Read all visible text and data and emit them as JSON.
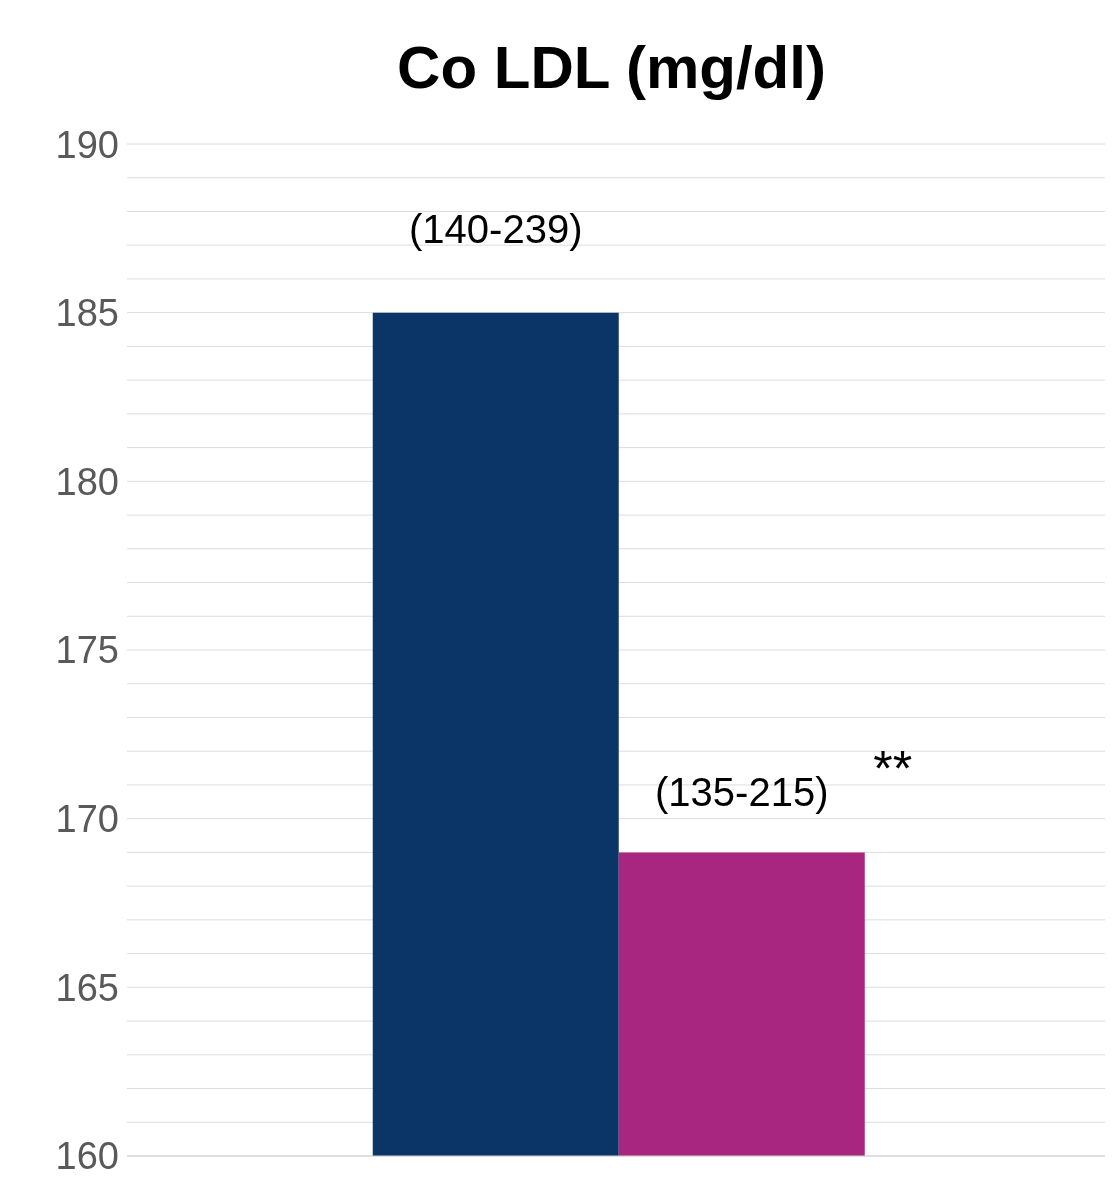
{
  "chart_data": {
    "type": "bar",
    "title": "Co LDL (mg/dl)",
    "categories": [
      null
    ],
    "series": [
      {
        "color": "#0a3566",
        "values": [
          185
        ],
        "value_labels": [
          "(140-239)"
        ]
      },
      {
        "color": "#a8267f",
        "values": [
          169
        ],
        "value_labels": [
          "(135-215)"
        ]
      }
    ],
    "annotations": [
      "**"
    ],
    "ylim": [
      160,
      190
    ],
    "yticks": [
      160,
      {
        "value": 161,
        "label": null
      },
      {
        "value": 162,
        "label": null
      },
      {
        "value": 163,
        "label": null
      },
      {
        "value": 164,
        "label": null
      },
      165,
      {
        "value": 166,
        "label": null
      },
      {
        "value": 167,
        "label": null
      },
      {
        "value": 168,
        "label": null
      },
      {
        "value": 169,
        "label": null
      },
      170,
      {
        "value": 171,
        "label": null
      },
      {
        "value": 172,
        "label": null
      },
      {
        "value": 173,
        "label": null
      },
      {
        "value": 174,
        "label": null
      },
      175,
      {
        "value": 176,
        "label": null
      },
      {
        "value": 177,
        "label": null
      },
      {
        "value": 178,
        "label": null
      },
      {
        "value": 179,
        "label": null
      },
      180,
      {
        "value": 181,
        "label": null
      },
      {
        "value": 182,
        "label": null
      },
      {
        "value": 183,
        "label": null
      },
      {
        "value": 184,
        "label": null
      },
      185,
      {
        "value": 186,
        "label": null
      },
      {
        "value": 187,
        "label": null
      },
      {
        "value": 188,
        "label": null
      },
      {
        "value": 189,
        "label": null
      },
      190
    ],
    "grid": "y"
  }
}
